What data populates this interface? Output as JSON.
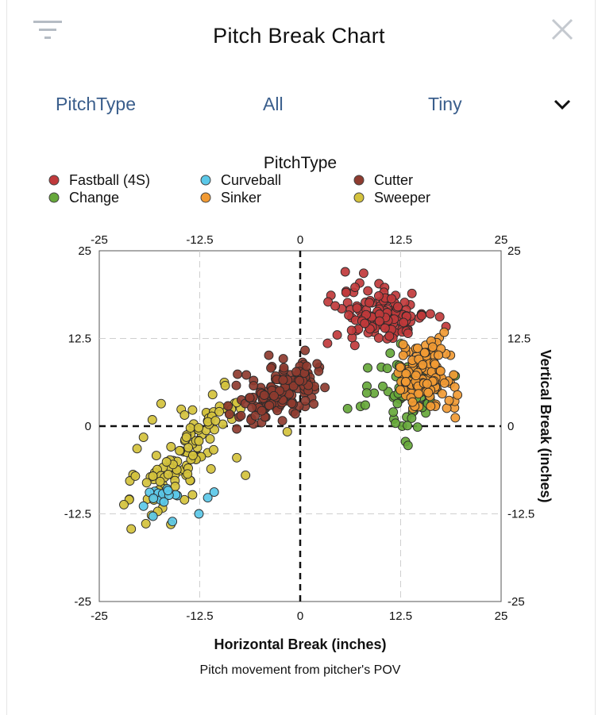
{
  "header": {
    "title": "Pitch Break Chart",
    "filter_icon": "filter-icon",
    "close_icon": "close-icon"
  },
  "controls": {
    "group_by": "PitchType",
    "filter": "All",
    "size": "Tiny",
    "expand_icon": "chevron-down-icon"
  },
  "chart_data": {
    "type": "scatter",
    "title": "PitchType",
    "xlabel": "Horizontal Break (inches)",
    "ylabel": "Vertical Break (inches)",
    "caption": "Pitch movement from pitcher's POV",
    "xlim": [
      -25,
      25
    ],
    "ylim": [
      -25,
      25
    ],
    "x_ticks": [
      "-25",
      "-12.5",
      "0",
      "12.5",
      "25"
    ],
    "y_ticks": [
      "25",
      "12.5",
      "0",
      "-12.5",
      "-25"
    ],
    "grid": true,
    "legend_position": "top",
    "series": [
      {
        "name": "Fastball (4S)",
        "color": "#c0393b",
        "center": [
          10.5,
          15.8
        ],
        "spread": [
          2.6,
          1.8
        ],
        "count": 130,
        "points": [
          [
            5.6,
            22.0
          ],
          [
            7.9,
            21.8
          ],
          [
            5.9,
            17.6
          ],
          [
            7.4,
            20.4
          ],
          [
            9.8,
            20.3
          ],
          [
            13.4,
            13.8
          ],
          [
            15.1,
            16.0
          ],
          [
            3.4,
            11.8
          ],
          [
            4.6,
            13.0
          ],
          [
            13.7,
            17.3
          ],
          [
            9.2,
            13.4
          ],
          [
            11.6,
            13.0
          ],
          [
            6.8,
            11.5
          ],
          [
            16.2,
            16.0
          ]
        ]
      },
      {
        "name": "Curveball",
        "color": "#5bc8e8",
        "center": [
          -16.8,
          -10.0
        ],
        "spread": [
          1.3,
          1.1
        ],
        "count": 12,
        "points": [
          [
            -19.5,
            -11.4
          ],
          [
            -12.6,
            -12.5
          ],
          [
            -10.7,
            -9.4
          ],
          [
            -15.3,
            -9.9
          ],
          [
            -18.1,
            -9.3
          ],
          [
            -11.5,
            -10.2
          ],
          [
            -15.9,
            -13.6
          ],
          [
            -17.2,
            -10.6
          ]
        ]
      },
      {
        "name": "Cutter",
        "color": "#8e3b2f",
        "center": [
          -2.2,
          4.9
        ],
        "spread": [
          2.4,
          2.1
        ],
        "count": 150,
        "points": [
          [
            -7.8,
            7.4
          ],
          [
            -6.7,
            7.3
          ],
          [
            -5.8,
            6.5
          ],
          [
            -8.8,
            1.7
          ],
          [
            -7.6,
            1.3
          ],
          [
            -4.8,
            0.5
          ],
          [
            -5.8,
            0.3
          ],
          [
            -7.9,
            -0.4
          ],
          [
            2.4,
            8.4
          ],
          [
            0.6,
            10.8
          ],
          [
            1.8,
            5.2
          ],
          [
            -3.9,
            10.1
          ],
          [
            0.3,
            9.1
          ],
          [
            -2.1,
            9.6
          ]
        ]
      },
      {
        "name": "Change",
        "color": "#66a83a",
        "center": [
          13.8,
          4.8
        ],
        "spread": [
          1.9,
          2.3
        ],
        "count": 70,
        "points": [
          [
            5.9,
            2.5
          ],
          [
            7.5,
            2.8
          ],
          [
            8.3,
            5.7
          ],
          [
            8.1,
            3.0
          ],
          [
            8.4,
            8.3
          ],
          [
            10.1,
            8.4
          ],
          [
            12.7,
            0.0
          ],
          [
            13.1,
            -2.2
          ],
          [
            9.2,
            4.7
          ],
          [
            11.2,
            10.4
          ],
          [
            11.6,
            4.1
          ]
        ]
      },
      {
        "name": "Sinker",
        "color": "#f19a33",
        "center": [
          15.4,
          7.3
        ],
        "spread": [
          1.8,
          2.4
        ],
        "count": 110,
        "points": [
          [
            19.1,
            7.3
          ],
          [
            18.7,
            10.1
          ],
          [
            19.3,
            1.2
          ],
          [
            19.2,
            2.6
          ],
          [
            17.3,
            12.6
          ],
          [
            16.6,
            11.8
          ],
          [
            13.5,
            10.6
          ]
        ]
      },
      {
        "name": "Sweeper",
        "color": "#d4c23c",
        "center": [
          -14.0,
          -3.5
        ],
        "spread": [
          3.0,
          4.0
        ],
        "count": 100,
        "points": [
          [
            -17.3,
            3.2
          ],
          [
            -14.8,
            2.4
          ],
          [
            -13.4,
            2.3
          ],
          [
            -10.9,
            4.5
          ],
          [
            -9.0,
            2.3
          ],
          [
            -8.7,
            1.7
          ],
          [
            -7.4,
            2.5
          ],
          [
            -8.5,
            1.0
          ],
          [
            -6.8,
            -7.0
          ],
          [
            -7.9,
            -4.5
          ],
          [
            -11.5,
            -3.8
          ],
          [
            -18.5,
            -12.7
          ],
          [
            -19.2,
            -13.9
          ],
          [
            -20.8,
            -6.9
          ],
          [
            -21.2,
            -7.8
          ],
          [
            -18.2,
            -7.6
          ],
          [
            -16.1,
            -14.0
          ],
          [
            -13.4,
            -9.8
          ],
          [
            -14.4,
            -10.5
          ],
          [
            -1.6,
            -0.8
          ],
          [
            -18.4,
            0.9
          ],
          [
            -19.5,
            -1.6
          ],
          [
            -20.3,
            -3.2
          ],
          [
            -17.0,
            -10.2
          ],
          [
            -19.0,
            -10.4
          ],
          [
            -17.9,
            -4.2
          ],
          [
            -13.1,
            -4.5
          ],
          [
            -14.2,
            -7.0
          ],
          [
            -11.1,
            -6.1
          ]
        ]
      }
    ]
  }
}
